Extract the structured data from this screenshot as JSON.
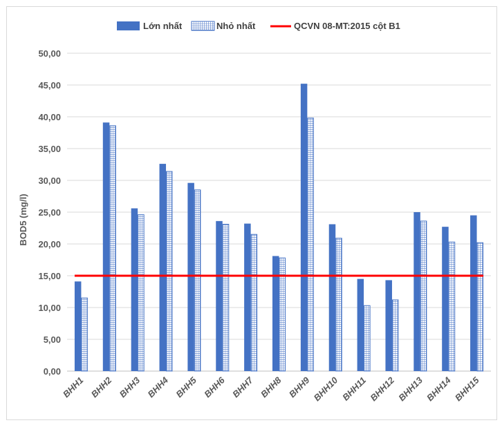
{
  "colors": {
    "max_bar": "#4472c4",
    "min_bar_pattern": "#4472c4",
    "standard_line": "#ff0000",
    "grid": "#d9d9d9",
    "text": "#595959"
  },
  "chart_data": {
    "type": "bar",
    "categories": [
      "BHH1",
      "BHH2",
      "BHH3",
      "BHH4",
      "BHH5",
      "BHH6",
      "BHH7",
      "BHH8",
      "BHH9",
      "BHH10",
      "BHH11",
      "BHH12",
      "BHH13",
      "BHH14",
      "BHH15"
    ],
    "series": [
      {
        "name": "Lớn nhất",
        "style": "solid",
        "values": [
          14.1,
          39.1,
          25.6,
          32.6,
          29.6,
          23.6,
          23.2,
          18.1,
          45.2,
          23.1,
          14.5,
          14.3,
          25.0,
          22.7,
          24.5
        ]
      },
      {
        "name": "Nhỏ nhất",
        "style": "grid-pattern",
        "values": [
          11.5,
          38.6,
          24.6,
          31.4,
          28.5,
          23.1,
          21.5,
          17.8,
          39.8,
          20.9,
          10.3,
          11.2,
          23.6,
          20.3,
          20.2
        ]
      }
    ],
    "reference_line": {
      "name": "QCVN 08-MT:2015 cột B1",
      "value": 15
    },
    "ylabel": "BOD5 (mg/l)",
    "xlabel": "",
    "ylim": [
      0,
      50
    ],
    "yticks": [
      "0,00",
      "5,00",
      "10,00",
      "15,00",
      "20,00",
      "25,00",
      "30,00",
      "35,00",
      "40,00",
      "45,00",
      "50,00"
    ],
    "grid": true,
    "legend_position": "top"
  }
}
